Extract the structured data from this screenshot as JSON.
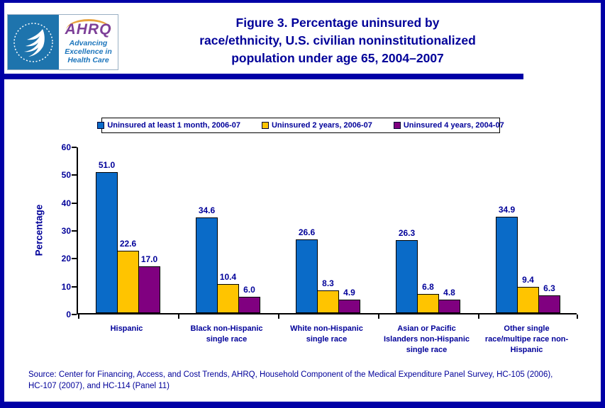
{
  "header": {
    "logo": {
      "acronym": "AHRQ",
      "tagline_lines": [
        "Advancing",
        "Excellence in",
        "Health Care"
      ]
    },
    "title_lines": [
      "Figure 3. Percentage uninsured by",
      "race/ethnicity, U.S. civilian noninstitutionalized",
      "population under age 65, 2004–2007"
    ]
  },
  "chart_data": {
    "type": "bar",
    "title": "Figure 3. Percentage uninsured by race/ethnicity, U.S. civilian noninstitutionalized population under age 65, 2004–2007",
    "xlabel": "",
    "ylabel": "Percentage",
    "ylim": [
      0,
      60
    ],
    "yticks": [
      0,
      10,
      20,
      30,
      40,
      50,
      60
    ],
    "grid": false,
    "legend_position": "top",
    "categories": [
      "Hispanic",
      "Black non-Hispanic single race",
      "White non-Hispanic single race",
      "Asian or Pacific Islanders non-Hispanic single race",
      "Other single race/multipe race non-Hispanic"
    ],
    "category_label_lines": [
      [
        "Hispanic"
      ],
      [
        "Black non-Hispanic",
        "single race"
      ],
      [
        "White non-Hispanic",
        "single race"
      ],
      [
        "Asian or Pacific",
        "Islanders non-Hispanic",
        "single race"
      ],
      [
        "Other single",
        "race/multipe race non-",
        "Hispanic"
      ]
    ],
    "series": [
      {
        "name": "Uninsured at least 1 month, 2006-07",
        "color": "#0A6BC8",
        "values": [
          51.0,
          34.6,
          26.6,
          26.3,
          34.9
        ]
      },
      {
        "name": "Uninsured 2 years, 2006-07",
        "color": "#FFC400",
        "values": [
          22.6,
          10.4,
          8.3,
          6.8,
          9.4
        ]
      },
      {
        "name": "Uninsured 4 years, 2004-07",
        "color": "#800080",
        "values": [
          17.0,
          6.0,
          4.9,
          4.8,
          6.3
        ]
      }
    ],
    "value_label_decimals": 1
  },
  "footer": {
    "source_lines": [
      "Source: Center for Financing, Access, and Cost Trends, AHRQ, Household Component of the Medical Expenditure Panel Survey, HC-105 (2006),",
      "HC-107 (2007), and HC-114 (Panel 11)"
    ]
  },
  "colors": {
    "frame_navy": "#0000A6",
    "text_navy": "#000099",
    "axis_black": "#000000",
    "hhs_blue": "#1E74AD",
    "ahrq_purple": "#7D3F98",
    "tagline_blue": "#1C75BC"
  }
}
